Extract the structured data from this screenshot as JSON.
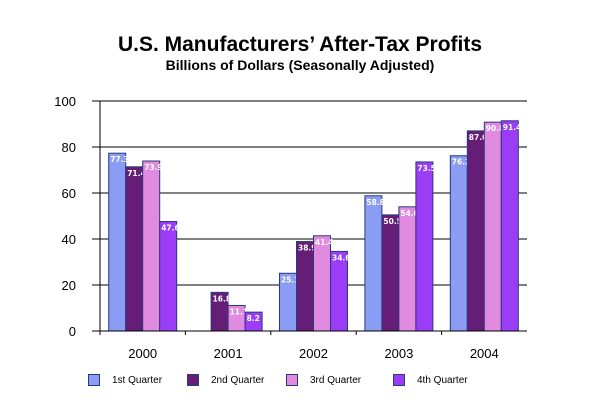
{
  "chart_data": {
    "type": "bar",
    "title": "U.S. Manufacturers’ After-Tax Profits",
    "subtitle": "Billions of Dollars (Seasonally Adjusted)",
    "xlabel": "",
    "ylabel": "",
    "ylim": [
      0,
      100
    ],
    "yticks": [
      "0",
      "20",
      "40",
      "60",
      "80",
      "100"
    ],
    "categories": [
      "2000",
      "2001",
      "2002",
      "2003",
      "2004"
    ],
    "grid": true,
    "legend_position": "bottom",
    "series": [
      {
        "name": "1st Quarter",
        "color": "#8b9cf4",
        "values": [
          77.3,
          null,
          25.1,
          58.8,
          76.2
        ],
        "labels": [
          "77.3",
          "",
          "25.1",
          "58.8",
          "76.2"
        ]
      },
      {
        "name": "2nd Quarter",
        "color": "#651d78",
        "values": [
          71.4,
          16.8,
          38.9,
          50.5,
          87.0
        ],
        "labels": [
          "71.4",
          "16.8",
          "38.9",
          "50.5",
          "87.0"
        ]
      },
      {
        "name": "3rd Quarter",
        "color": "#e08ae0",
        "values": [
          73.9,
          11.1,
          41.4,
          54.0,
          90.8
        ],
        "labels": [
          "73.9",
          "11.1",
          "41.4",
          "54.0",
          "90.8"
        ]
      },
      {
        "name": "4th Quarter",
        "color": "#9b3cf6",
        "values": [
          47.6,
          8.2,
          34.6,
          73.5,
          91.4
        ],
        "labels": [
          "47.6",
          "8.2",
          "34.6",
          "73.5",
          "91.4"
        ]
      }
    ]
  }
}
